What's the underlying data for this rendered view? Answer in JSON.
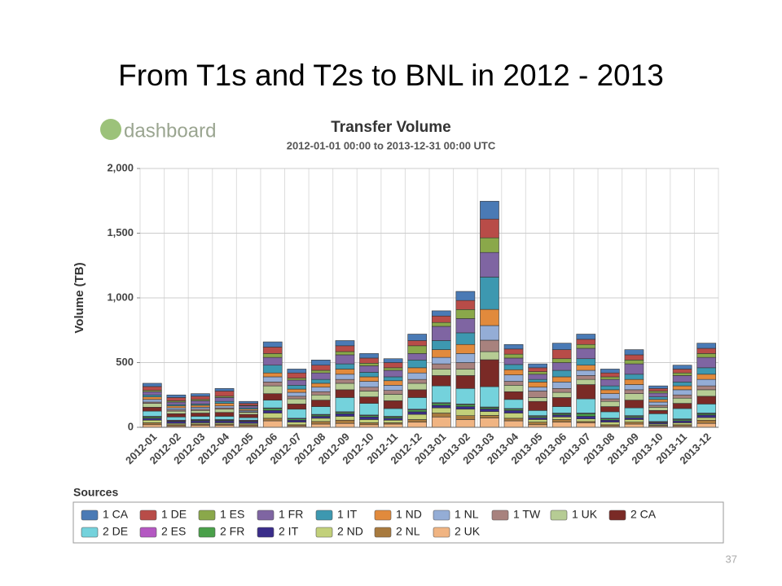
{
  "slide": {
    "title": "From T1s and T2s to BNL in 2012 - 2013",
    "logo": "dashboard",
    "page_number": "37"
  },
  "chart_data": {
    "type": "stacked_bar",
    "title": "Transfer Volume",
    "subtitle": "2012-01-01 00:00 to 2013-12-31 00:00 UTC",
    "y_label": "Volume (TB)",
    "legend_title": "Sources",
    "grid": true,
    "ylim": [
      0,
      2000
    ],
    "yticks": [
      0,
      500,
      {
        "value": 1000,
        "label": "1,000"
      },
      {
        "value": 1500,
        "label": "1,500"
      },
      {
        "value": 2000,
        "label": "2,000"
      }
    ],
    "categories": [
      "2012-01",
      "2012-02",
      "2012-03",
      "2012-04",
      "2012-05",
      "2012-06",
      "2012-07",
      "2012-08",
      "2012-09",
      "2012-10",
      "2012-11",
      "2012-12",
      "2013-01",
      "2013-02",
      "2013-03",
      "2013-04",
      "2013-05",
      "2013-06",
      "2013-07",
      "2013-08",
      "2013-09",
      "2013-10",
      "2013-11",
      "2013-12"
    ],
    "series": [
      {
        "name": "1 CA",
        "color": "#4a7ab5",
        "values": [
          25,
          20,
          20,
          20,
          15,
          40,
          30,
          40,
          40,
          35,
          30,
          50,
          40,
          70,
          138,
          35,
          30,
          50,
          40,
          30,
          40,
          20,
          30,
          40
        ]
      },
      {
        "name": "1 DE",
        "color": "#b84c48",
        "values": [
          30,
          25,
          25,
          40,
          15,
          50,
          40,
          40,
          45,
          40,
          40,
          40,
          50,
          70,
          145,
          40,
          30,
          70,
          40,
          30,
          40,
          20,
          30,
          40
        ]
      },
      {
        "name": "1 ES",
        "color": "#8aa84a",
        "values": [
          10,
          10,
          10,
          10,
          5,
          30,
          15,
          20,
          25,
          20,
          20,
          60,
          30,
          70,
          113,
          30,
          20,
          30,
          30,
          20,
          30,
          15,
          20,
          30
        ]
      },
      {
        "name": "1 FR",
        "color": "#7f65a2",
        "values": [
          25,
          20,
          25,
          30,
          15,
          60,
          40,
          50,
          70,
          50,
          50,
          50,
          110,
          110,
          190,
          50,
          40,
          60,
          80,
          50,
          80,
          30,
          50,
          80
        ]
      },
      {
        "name": "1 IT",
        "color": "#3d98b0",
        "values": [
          15,
          10,
          10,
          15,
          10,
          60,
          30,
          30,
          40,
          35,
          30,
          60,
          70,
          90,
          250,
          40,
          20,
          50,
          50,
          30,
          40,
          20,
          30,
          50
        ]
      },
      {
        "name": "1 ND",
        "color": "#e18a3c",
        "values": [
          20,
          15,
          15,
          20,
          10,
          30,
          25,
          30,
          40,
          35,
          35,
          40,
          60,
          70,
          125,
          40,
          40,
          40,
          40,
          30,
          40,
          20,
          30,
          40
        ]
      },
      {
        "name": "1 NL",
        "color": "#94add6",
        "values": [
          20,
          15,
          15,
          15,
          10,
          40,
          30,
          35,
          40,
          45,
          40,
          50,
          50,
          70,
          113,
          50,
          30,
          50,
          40,
          40,
          40,
          25,
          40,
          50
        ]
      },
      {
        "name": "1 TW",
        "color": "#a8827e",
        "values": [
          10,
          10,
          10,
          10,
          5,
          30,
          20,
          25,
          30,
          30,
          30,
          30,
          40,
          50,
          88,
          30,
          50,
          30,
          30,
          20,
          30,
          15,
          25,
          30
        ]
      },
      {
        "name": "1 UK",
        "color": "#b6cc94",
        "values": [
          30,
          20,
          20,
          25,
          15,
          60,
          40,
          40,
          50,
          45,
          50,
          50,
          50,
          50,
          63,
          50,
          30,
          40,
          40,
          40,
          50,
          25,
          40,
          50
        ]
      },
      {
        "name": "2 CA",
        "color": "#7a2a26",
        "values": [
          30,
          25,
          25,
          30,
          25,
          50,
          40,
          50,
          60,
          50,
          60,
          60,
          80,
          100,
          208,
          60,
          70,
          70,
          110,
          40,
          60,
          25,
          40,
          60
        ]
      },
      {
        "name": "2 DE",
        "color": "#74d2dc",
        "values": [
          40,
          25,
          25,
          25,
          20,
          60,
          70,
          60,
          110,
          90,
          60,
          90,
          130,
          120,
          157,
          70,
          40,
          50,
          110,
          50,
          60,
          60,
          80,
          70
        ]
      },
      {
        "name": "2 ES",
        "color": "#b458c2",
        "values": [
          5,
          5,
          5,
          5,
          5,
          5,
          5,
          5,
          5,
          5,
          5,
          5,
          5,
          5,
          5,
          5,
          5,
          5,
          5,
          5,
          5,
          5,
          5,
          5
        ]
      },
      {
        "name": "2 FR",
        "color": "#4aa04a",
        "values": [
          10,
          5,
          5,
          5,
          5,
          15,
          10,
          10,
          10,
          10,
          10,
          15,
          15,
          15,
          10,
          10,
          10,
          10,
          20,
          10,
          10,
          5,
          10,
          10
        ]
      },
      {
        "name": "2 IT",
        "color": "#3a2d8a",
        "values": [
          15,
          15,
          15,
          15,
          15,
          20,
          15,
          15,
          20,
          20,
          15,
          20,
          20,
          20,
          20,
          20,
          15,
          15,
          20,
          15,
          15,
          10,
          15,
          20
        ]
      },
      {
        "name": "2 ND",
        "color": "#c2d07a",
        "values": [
          20,
          10,
          10,
          10,
          10,
          40,
          20,
          25,
          30,
          25,
          20,
          40,
          40,
          50,
          30,
          40,
          20,
          20,
          20,
          20,
          20,
          10,
          15,
          20
        ]
      },
      {
        "name": "2 NL",
        "color": "#a87a3e",
        "values": [
          15,
          10,
          10,
          10,
          10,
          20,
          10,
          20,
          25,
          15,
          10,
          20,
          30,
          30,
          20,
          20,
          20,
          20,
          10,
          10,
          15,
          5,
          10,
          25
        ]
      },
      {
        "name": "2 UK",
        "color": "#f0b482",
        "values": [
          20,
          10,
          15,
          15,
          10,
          50,
          10,
          25,
          30,
          20,
          25,
          40,
          80,
          60,
          72,
          50,
          20,
          40,
          35,
          10,
          25,
          10,
          10,
          30
        ]
      }
    ]
  }
}
